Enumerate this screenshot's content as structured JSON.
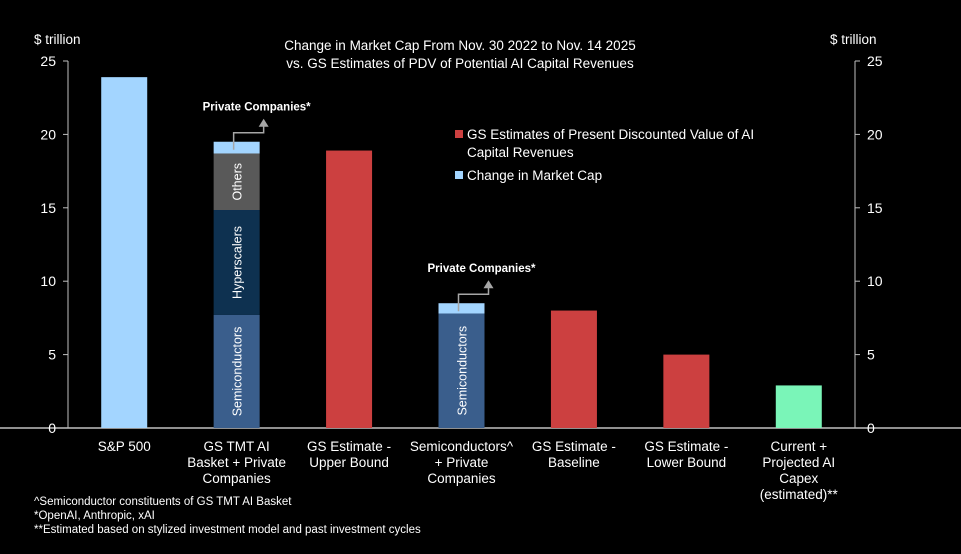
{
  "chart_data": {
    "type": "bar",
    "title": "Change in Market Cap From Nov. 30 2022 to Nov. 14 2025",
    "subtitle": "vs. GS Estimates of PDV of  Potential AI Capital Revenues",
    "ylabel_left": "$ trillion",
    "ylabel_right": "$ trillion",
    "ylim": [
      0,
      25
    ],
    "yticks": [
      0,
      5,
      10,
      15,
      20,
      25
    ],
    "grid": false,
    "legend_placement": "top-right",
    "legend": [
      {
        "label": "GS Estimates of Present Discounted Value of AI Capital Revenues",
        "color": "#cc4040"
      },
      {
        "label": "Change in Market Cap",
        "color": "#a3d5ff"
      }
    ],
    "categories": [
      [
        "S&P 500"
      ],
      [
        "GS TMT AI",
        "Basket + Private",
        "Companies"
      ],
      [
        "GS Estimate -",
        "Upper Bound"
      ],
      [
        "Semiconductors^",
        "+ Private",
        "Companies"
      ],
      [
        "GS Estimate -",
        "Baseline"
      ],
      [
        "GS Estimate -",
        "Lower Bound"
      ],
      [
        "Current +",
        "Projected AI",
        "Capex",
        "(estimated)**"
      ]
    ],
    "bars": [
      {
        "segments": [
          {
            "value": 23.9,
            "color": "#a3d5ff"
          }
        ]
      },
      {
        "segments": [
          {
            "label": "Semiconductors",
            "value": 7.7,
            "color": "#3a5e8c"
          },
          {
            "label": "Hyperscalers",
            "value": 7.15,
            "color": "#0e3150"
          },
          {
            "label": "Others",
            "value": 3.85,
            "color": "#595959"
          },
          {
            "value": 0.8,
            "color": "#a3d5ff"
          }
        ],
        "annotation": "Private Companies*"
      },
      {
        "segments": [
          {
            "value": 18.9,
            "color": "#cc4040"
          }
        ]
      },
      {
        "segments": [
          {
            "label": "Semiconductors",
            "value": 7.8,
            "color": "#3a5e8c"
          },
          {
            "value": 0.7,
            "color": "#a3d5ff"
          }
        ],
        "annotation": "Private Companies*"
      },
      {
        "segments": [
          {
            "value": 8.0,
            "color": "#cc4040"
          }
        ]
      },
      {
        "segments": [
          {
            "value": 5.0,
            "color": "#cc4040"
          }
        ]
      },
      {
        "segments": [
          {
            "value": 2.9,
            "color": "#7af5b8"
          }
        ]
      }
    ],
    "footnotes": [
      "^Semiconductor constituents of GS TMT  AI Basket",
      "*OpenAI, Anthropic, xAI",
      "**Estimated  based on stylized investment model and past investment cycles"
    ]
  }
}
